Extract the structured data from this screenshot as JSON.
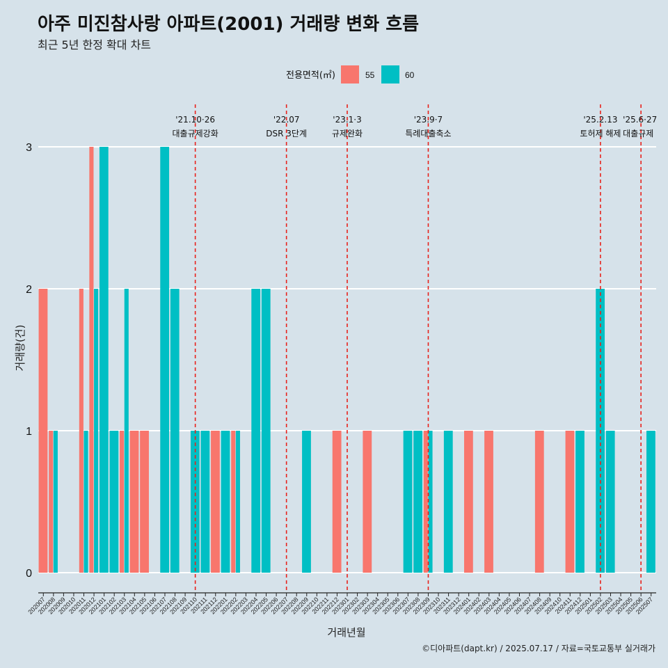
{
  "header": {
    "title": "아주 미진참사랑 아파트(2001) 거래량 변화 흐름",
    "subtitle": "최근 5년 한정 확대 차트"
  },
  "legend": {
    "title": "전용면적(㎡)",
    "items": [
      {
        "label": "55",
        "color": "#f8766d"
      },
      {
        "label": "60",
        "color": "#00bfc4"
      }
    ]
  },
  "footer": {
    "caption": "©디아파트(dapt.kr) / 2025.07.17 / 자료=국토교통부 실거래가"
  },
  "chart_data": {
    "type": "bar",
    "title": "아주 미진참사랑 아파트(2001) 거래량 변화 흐름",
    "xlabel": "거래년월",
    "ylabel": "거래량(건)",
    "ylim": [
      0,
      3
    ],
    "yticks": [
      0,
      1,
      2,
      3
    ],
    "grid": true,
    "legend_position": "top",
    "categories": [
      "202007",
      "202008",
      "202009",
      "202010",
      "202011",
      "202012",
      "202101",
      "202102",
      "202103",
      "202104",
      "202105",
      "202106",
      "202107",
      "202108",
      "202109",
      "202110",
      "202111",
      "202112",
      "202201",
      "202202",
      "202203",
      "202204",
      "202205",
      "202206",
      "202207",
      "202208",
      "202209",
      "202210",
      "202211",
      "202212",
      "202301",
      "202302",
      "202303",
      "202304",
      "202305",
      "202306",
      "202307",
      "202308",
      "202309",
      "202310",
      "202311",
      "202312",
      "202401",
      "202402",
      "202403",
      "202404",
      "202405",
      "202406",
      "202407",
      "202408",
      "202409",
      "202410",
      "202411",
      "202412",
      "202501",
      "202502",
      "202503",
      "202504",
      "202505",
      "202506",
      "202507"
    ],
    "series": [
      {
        "name": "55",
        "color": "#f8766d",
        "values": [
          2,
          1,
          0,
          0,
          2,
          3,
          0,
          0,
          1,
          1,
          1,
          0,
          0,
          0,
          0,
          0,
          0,
          1,
          0,
          1,
          0,
          0,
          0,
          0,
          0,
          0,
          0,
          0,
          0,
          1,
          0,
          0,
          1,
          0,
          0,
          0,
          0,
          0,
          1,
          0,
          0,
          0,
          1,
          0,
          1,
          0,
          0,
          0,
          0,
          1,
          0,
          0,
          1,
          0,
          0,
          0,
          0,
          0,
          0,
          0,
          0
        ]
      },
      {
        "name": "60",
        "color": "#00bfc4",
        "values": [
          0,
          1,
          0,
          0,
          1,
          2,
          3,
          1,
          2,
          0,
          0,
          0,
          3,
          2,
          0,
          1,
          1,
          0,
          1,
          1,
          0,
          2,
          2,
          0,
          0,
          0,
          1,
          0,
          0,
          0,
          0,
          0,
          0,
          0,
          0,
          0,
          1,
          1,
          1,
          0,
          1,
          0,
          0,
          0,
          0,
          0,
          0,
          0,
          0,
          0,
          0,
          0,
          0,
          1,
          0,
          2,
          1,
          0,
          0,
          0,
          1
        ]
      }
    ],
    "events": [
      {
        "month": "202110",
        "date": "'21.10·26",
        "label": "대출규제강화"
      },
      {
        "month": "202207",
        "date": "'22.07",
        "label": "DSR 3단계"
      },
      {
        "month": "202301",
        "date": "'23.1·3",
        "label": "규제완화"
      },
      {
        "month": "202309",
        "date": "'23.9·7",
        "label": "특례대출축소"
      },
      {
        "month": "202502",
        "date": "'25.2.13",
        "label": "토허제 해제"
      },
      {
        "month": "202506",
        "date": "'25.6·27",
        "label": "대출규제"
      }
    ]
  }
}
